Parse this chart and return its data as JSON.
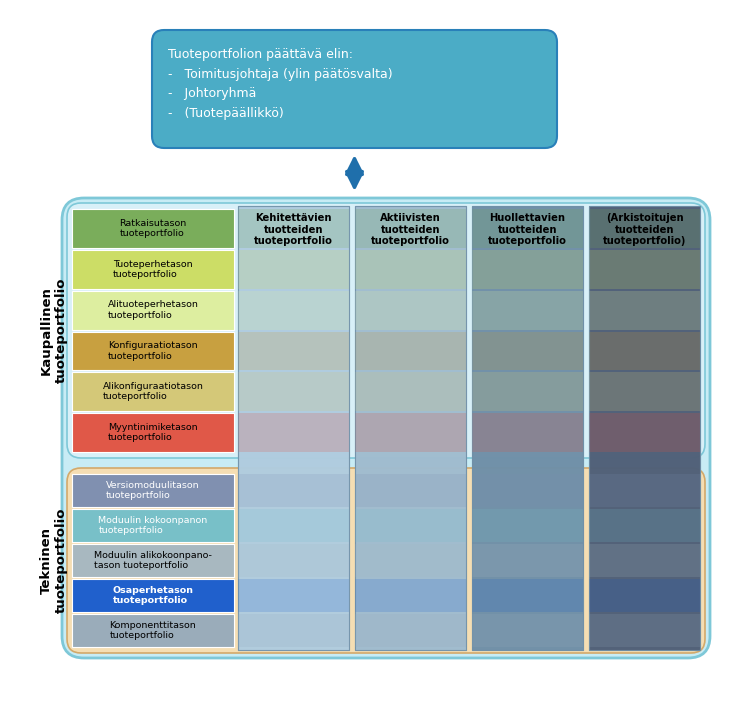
{
  "title_box": {
    "text": "Tuoteportfolion päättävä elin:\n-   Toimitusjohtaja (ylin päätösvalta)\n-   Johtoryhmä\n-   (Tuotepäällikkö)",
    "bg_color": "#4BACC6",
    "text_color": "#FFFFFF",
    "border_color": "#2980B9"
  },
  "arrow_color": "#1F6FAB",
  "outer_bg": "#C8ECF5",
  "outer_border": "#7EC8D8",
  "kaupallinen_bg": "#D8F0F8",
  "kaupallinen_border": "#7EC8D8",
  "kaupallinen_label": "Kaupallinen\ntuoteportfolio",
  "tekninen_bg": "#F5DEB3",
  "tekninen_border": "#D4A96A",
  "tekninen_label": "Tekninen\ntuoteportfolio",
  "row_labels_commercial": [
    "Ratkaisutason\ntuoteportfolio",
    "Tuoteperhetason\ntuoteportfolio",
    "Alituoteperhetason\ntuoteportfolio",
    "Konfiguraatiotason\ntuoteportfolio",
    "Alikonfiguraatiotason\ntuoteportfolio",
    "Myyntinimiketason\ntuoteportfolio"
  ],
  "row_colors_commercial": [
    "#7AAD5B",
    "#CCDD66",
    "#DDEEA0",
    "#C8A040",
    "#D4C878",
    "#E05848"
  ],
  "row_labels_technical": [
    "Versiomoduulitason\ntuoteportfolio",
    "Moduulin kokoonpanon\ntuoteportfolio",
    "Moduulin alikokoonpano-\ntason tuoteportfolio",
    "Osaperhetason\ntuoteportfolio",
    "Komponenttitason\ntuoteportfolio"
  ],
  "row_colors_technical": [
    "#8090B0",
    "#78C0C8",
    "#A8B8C0",
    "#2060CC",
    "#9AACBA"
  ],
  "column_headers": [
    "Kehitettävien\ntuotteiden\ntuoteportfolio",
    "Aktiivisten\ntuotteiden\ntuoteportfolio",
    "Huollettavien\ntuotteiden\ntuoteportfolio",
    "(Arkistoitujen\ntuotteiden\ntuoteportfolio)"
  ],
  "column_colors": [
    "#B0CCDF",
    "#A0BCCF",
    "#7090A8",
    "#506078"
  ]
}
